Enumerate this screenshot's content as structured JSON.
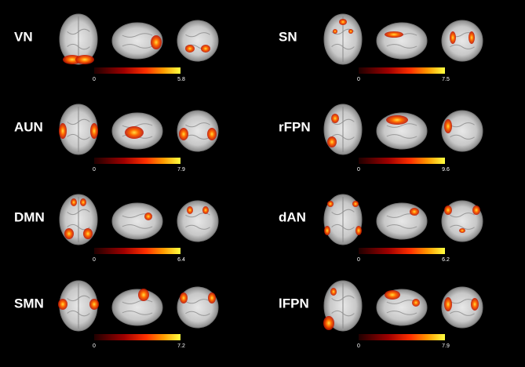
{
  "panels": [
    {
      "label": "VN",
      "colorbar": {
        "min": 0,
        "max": 5.8
      }
    },
    {
      "label": "SN",
      "colorbar": {
        "min": 0,
        "max": 7.5
      }
    },
    {
      "label": "AUN",
      "colorbar": {
        "min": 0,
        "max": 7.9
      }
    },
    {
      "label": "rFPN",
      "colorbar": {
        "min": 0,
        "max": 9.6
      }
    },
    {
      "label": "DMN",
      "colorbar": {
        "min": 0,
        "max": 6.4
      }
    },
    {
      "label": "dAN",
      "colorbar": {
        "min": 0,
        "max": 6.2
      }
    },
    {
      "label": "SMN",
      "colorbar": {
        "min": 0,
        "max": 7.2
      }
    },
    {
      "label": "lFPN",
      "colorbar": {
        "min": 0,
        "max": 7.9
      }
    }
  ]
}
